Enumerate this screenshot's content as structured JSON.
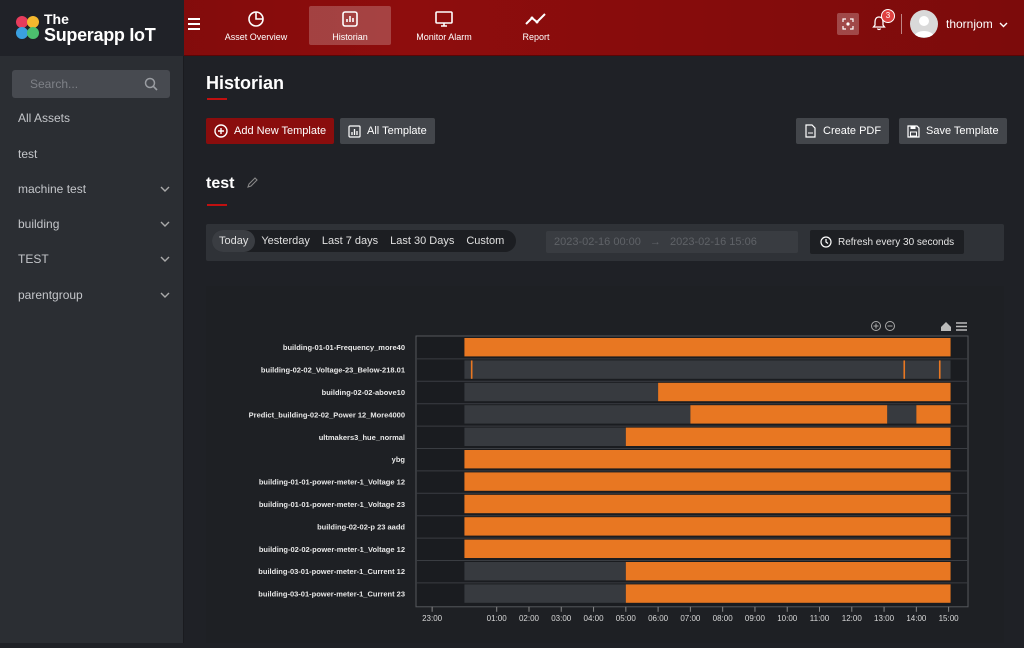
{
  "brand": {
    "line1": "The",
    "line2": "Superapp IoT"
  },
  "nav": [
    {
      "label": "Asset Overview"
    },
    {
      "label": "Historian"
    },
    {
      "label": "Monitor Alarm"
    },
    {
      "label": "Report"
    }
  ],
  "notifications": {
    "count": "3"
  },
  "user": {
    "name": "thornjom"
  },
  "sidebar": {
    "search_placeholder": "Search...",
    "items": [
      {
        "label": "All Assets"
      },
      {
        "label": "test"
      },
      {
        "label": "machine test"
      },
      {
        "label": "building"
      },
      {
        "label": "TEST"
      },
      {
        "label": "parentgroup"
      }
    ]
  },
  "page": {
    "title": "Historian",
    "add_template": "Add New Template",
    "all_template": "All Template",
    "create_pdf": "Create PDF",
    "save_template": "Save Template",
    "template_name": "test"
  },
  "filters": {
    "ranges": [
      "Today",
      "Yesterday",
      "Last 7 days",
      "Last 30 Days",
      "Custom"
    ],
    "selected": "Today",
    "date_start": "2023-02-16 00:00",
    "date_end": "2023-02-16 15:06",
    "refresh_label": "Refresh every 30 seconds"
  },
  "colors": {
    "accent": "#8a0d0d",
    "on": "#e87722",
    "off": "#373a3f",
    "bg": "#1e2024"
  },
  "chart_data": {
    "type": "timeline",
    "xlabel": "",
    "ylabel": "",
    "x_ticks": [
      "23:00",
      "01:00",
      "02:00",
      "03:00",
      "04:00",
      "05:00",
      "06:00",
      "07:00",
      "08:00",
      "09:00",
      "10:00",
      "11:00",
      "12:00",
      "13:00",
      "14:00",
      "15:00"
    ],
    "x_tick_hours": [
      23,
      25,
      26,
      27,
      28,
      29,
      30,
      31,
      32,
      33,
      34,
      35,
      36,
      37,
      38,
      39
    ],
    "x_range_hours": [
      22.5,
      39.6
    ],
    "series": [
      {
        "name": "building-01-01-Frequency_more40",
        "segments": [
          {
            "start": 24.0,
            "end": 39.06,
            "state": "on"
          }
        ]
      },
      {
        "name": "building-02-02_Voltage-23_Below-218.01",
        "segments": [
          {
            "start": 24.0,
            "end": 39.06,
            "state": "off"
          },
          {
            "start": 24.2,
            "end": 24.25,
            "state": "on"
          },
          {
            "start": 37.6,
            "end": 37.65,
            "state": "on"
          },
          {
            "start": 38.7,
            "end": 38.75,
            "state": "on"
          }
        ]
      },
      {
        "name": "building-02-02-above10",
        "segments": [
          {
            "start": 24.0,
            "end": 30.0,
            "state": "off"
          },
          {
            "start": 30.0,
            "end": 39.06,
            "state": "on"
          }
        ]
      },
      {
        "name": "Predict_building-02-02_Power 12_More4000",
        "segments": [
          {
            "start": 24.0,
            "end": 31.0,
            "state": "off"
          },
          {
            "start": 31.0,
            "end": 37.1,
            "state": "on"
          },
          {
            "start": 37.1,
            "end": 38.0,
            "state": "off"
          },
          {
            "start": 38.0,
            "end": 39.06,
            "state": "on"
          }
        ]
      },
      {
        "name": "ultmakers3_hue_normal",
        "segments": [
          {
            "start": 24.0,
            "end": 29.0,
            "state": "off"
          },
          {
            "start": 29.0,
            "end": 39.06,
            "state": "on"
          }
        ]
      },
      {
        "name": "ybg",
        "segments": [
          {
            "start": 24.0,
            "end": 39.06,
            "state": "on"
          }
        ]
      },
      {
        "name": "building-01-01-power-meter-1_Voltage 12",
        "segments": [
          {
            "start": 24.0,
            "end": 39.06,
            "state": "on"
          }
        ]
      },
      {
        "name": "building-01-01-power-meter-1_Voltage 23",
        "segments": [
          {
            "start": 24.0,
            "end": 39.06,
            "state": "on"
          }
        ]
      },
      {
        "name": "building-02-02-p 23 aadd",
        "segments": [
          {
            "start": 24.0,
            "end": 39.06,
            "state": "on"
          }
        ]
      },
      {
        "name": "building-02-02-power-meter-1_Voltage 12",
        "segments": [
          {
            "start": 24.0,
            "end": 39.06,
            "state": "on"
          }
        ]
      },
      {
        "name": "building-03-01-power-meter-1_Current 12",
        "segments": [
          {
            "start": 24.0,
            "end": 29.0,
            "state": "off"
          },
          {
            "start": 29.0,
            "end": 39.06,
            "state": "on"
          }
        ]
      },
      {
        "name": "building-03-01-power-meter-1_Current 23",
        "segments": [
          {
            "start": 24.0,
            "end": 29.0,
            "state": "off"
          },
          {
            "start": 29.0,
            "end": 39.06,
            "state": "on"
          }
        ]
      }
    ]
  }
}
